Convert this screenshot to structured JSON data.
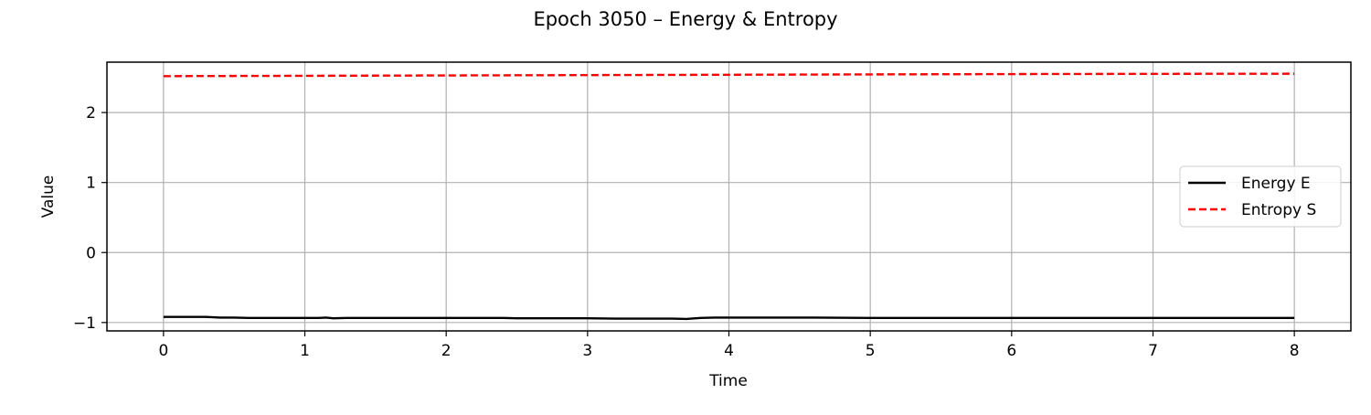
{
  "chart_data": {
    "type": "line",
    "title": "Epoch 3050 – Energy & Entropy",
    "xlabel": "Time",
    "ylabel": "Value",
    "xlim": [
      -0.4,
      8.4
    ],
    "ylim": [
      -1.12,
      2.72
    ],
    "x_ticks": [
      0,
      1,
      2,
      3,
      4,
      5,
      6,
      7,
      8
    ],
    "x_tick_labels": [
      "0",
      "1",
      "2",
      "3",
      "4",
      "5",
      "6",
      "7",
      "8"
    ],
    "y_ticks": [
      -1,
      0,
      1,
      2
    ],
    "y_tick_labels": [
      "−1",
      "0",
      "1",
      "2"
    ],
    "grid": true,
    "legend_position": "center-right",
    "series": [
      {
        "name": "Energy E",
        "style": "solid",
        "color": "#000000",
        "x": [
          0,
          0.1,
          0.2,
          0.3,
          0.4,
          0.5,
          0.6,
          0.7,
          0.8,
          0.9,
          1.0,
          1.1,
          1.15,
          1.2,
          1.3,
          1.4,
          1.5,
          1.6,
          1.7,
          1.8,
          1.9,
          2.0,
          2.2,
          2.4,
          2.5,
          2.6,
          2.8,
          3.0,
          3.2,
          3.4,
          3.6,
          3.7,
          3.8,
          3.9,
          4.0,
          4.2,
          4.4,
          4.6,
          5.0,
          6.0,
          7.0,
          8.0
        ],
        "values": [
          -0.92,
          -0.92,
          -0.92,
          -0.92,
          -0.93,
          -0.93,
          -0.935,
          -0.935,
          -0.935,
          -0.935,
          -0.935,
          -0.935,
          -0.93,
          -0.94,
          -0.935,
          -0.935,
          -0.935,
          -0.935,
          -0.935,
          -0.935,
          -0.935,
          -0.935,
          -0.935,
          -0.935,
          -0.94,
          -0.94,
          -0.94,
          -0.94,
          -0.945,
          -0.945,
          -0.945,
          -0.95,
          -0.935,
          -0.93,
          -0.93,
          -0.93,
          -0.93,
          -0.93,
          -0.935,
          -0.935,
          -0.935,
          -0.935
        ]
      },
      {
        "name": "Entropy S",
        "style": "dashed",
        "color": "#ff0000",
        "x": [
          0,
          1,
          2,
          3,
          4,
          5,
          6,
          7,
          8
        ],
        "values": [
          2.52,
          2.525,
          2.53,
          2.535,
          2.54,
          2.545,
          2.55,
          2.553,
          2.555
        ]
      }
    ]
  }
}
